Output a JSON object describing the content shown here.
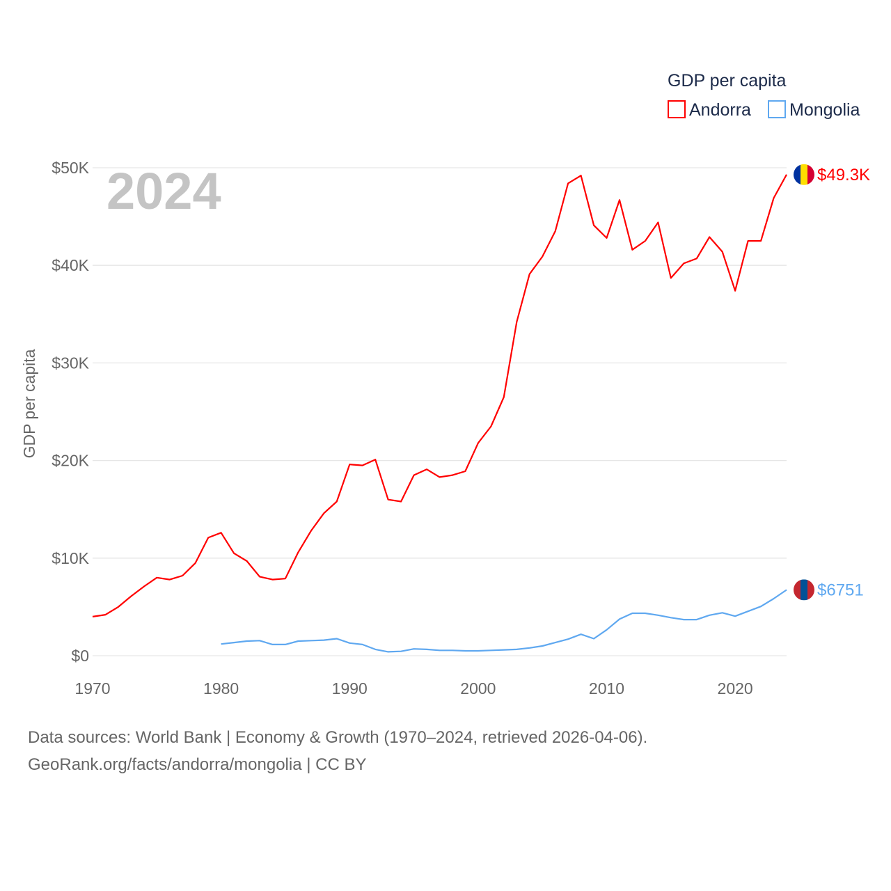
{
  "chart_data": {
    "type": "line",
    "title": "",
    "xlabel": "",
    "ylabel": "GDP per capita",
    "year_label": "2024",
    "legend": {
      "title": "GDP per capita",
      "position": "top-right"
    },
    "xlim": [
      1970,
      2024
    ],
    "ylim": [
      0,
      50000
    ],
    "x_ticks": [
      "1970",
      "1980",
      "1990",
      "2000",
      "2010",
      "2020"
    ],
    "y_ticks": [
      "$0",
      "$10K",
      "$20K",
      "$30K",
      "$40K",
      "$50K"
    ],
    "y_tick_values": [
      0,
      10000,
      20000,
      30000,
      40000,
      50000
    ],
    "grid": true,
    "series": [
      {
        "name": "Andorra",
        "color": "#ff0000",
        "end_label": "$49.3K",
        "start_year": 1970,
        "values": [
          4000,
          4200,
          5000,
          6100,
          7100,
          8000,
          7800,
          8200,
          9500,
          12100,
          12600,
          10500,
          9700,
          8100,
          7800,
          7900,
          10600,
          12800,
          14600,
          15800,
          19600,
          19500,
          20100,
          16000,
          15800,
          18500,
          19100,
          18300,
          18500,
          18900,
          21800,
          23500,
          26500,
          34200,
          39100,
          40900,
          43500,
          48400,
          49200,
          44100,
          42800,
          46700,
          41600,
          42500,
          44400,
          38700,
          40200,
          40700,
          42900,
          41400,
          37400,
          42500,
          42500,
          46900,
          49300
        ]
      },
      {
        "name": "Mongolia",
        "color": "#5fa8f0",
        "end_label": "$6751",
        "start_year": 1980,
        "values": [
          1200,
          1350,
          1500,
          1550,
          1150,
          1150,
          1500,
          1550,
          1600,
          1750,
          1300,
          1150,
          650,
          400,
          450,
          700,
          650,
          550,
          550,
          500,
          500,
          550,
          600,
          650,
          800,
          1000,
          1350,
          1700,
          2200,
          1750,
          2650,
          3750,
          4350,
          4350,
          4150,
          3900,
          3700,
          3700,
          4150,
          4400,
          4050,
          4550,
          5050,
          5850,
          6751
        ]
      }
    ]
  },
  "footer": {
    "line1": "Data sources: World Bank | Economy & Growth (1970–2024, retrieved 2026-04-06).",
    "line2": "GeoRank.org/facts/andorra/mongolia | CC BY"
  }
}
